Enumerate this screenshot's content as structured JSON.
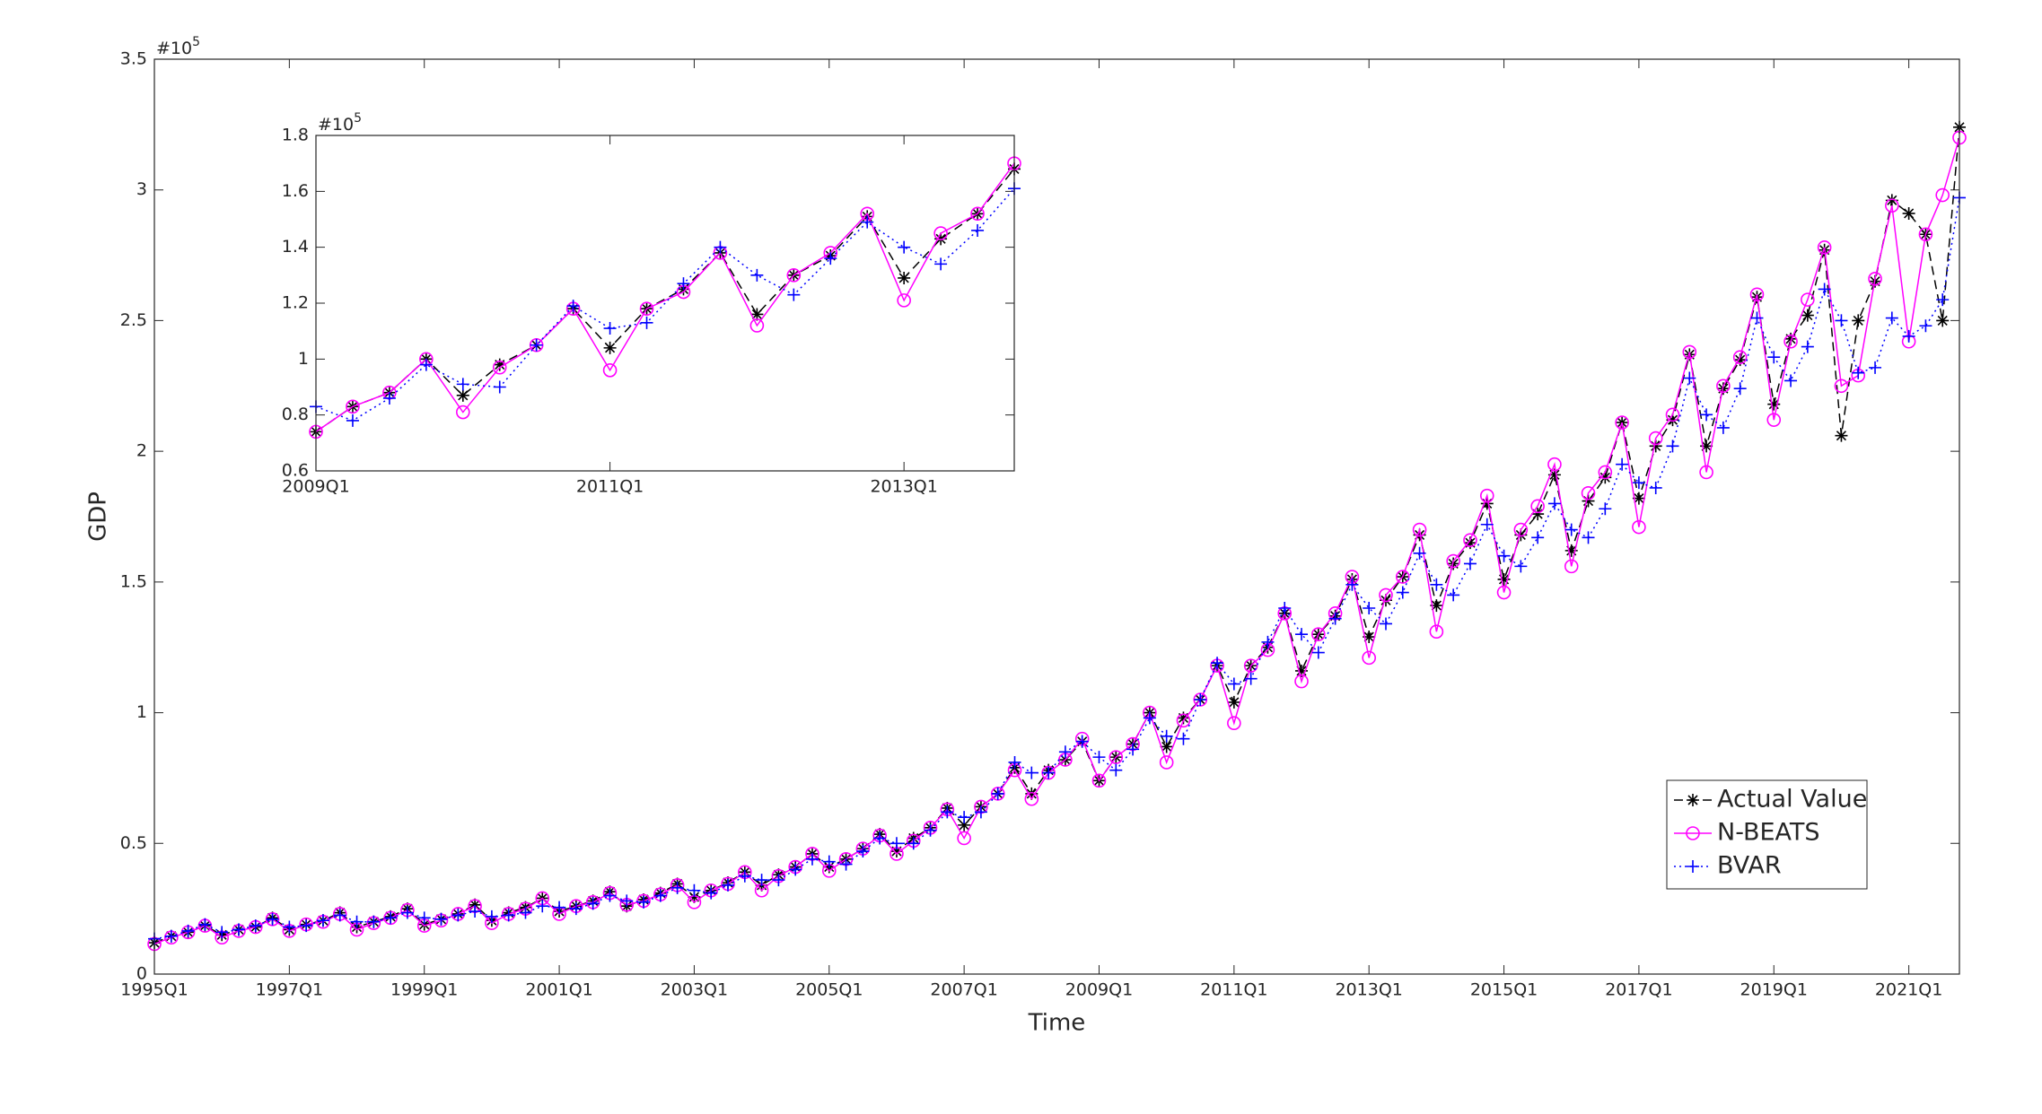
{
  "chart_data": [
    {
      "type": "line",
      "xlabel": "Time",
      "ylabel": "GDP",
      "y_multiplier": "#10",
      "y_multiplier_exp": "5",
      "categories": [
        "1995Q1",
        null,
        null,
        null,
        null,
        null,
        null,
        null,
        "1997Q1",
        null,
        null,
        null,
        null,
        null,
        null,
        null,
        "1999Q1",
        null,
        null,
        null,
        null,
        null,
        null,
        null,
        "2001Q1",
        null,
        null,
        null,
        null,
        null,
        null,
        null,
        "2003Q1",
        null,
        null,
        null,
        null,
        null,
        null,
        null,
        "2005Q1",
        null,
        null,
        null,
        null,
        null,
        null,
        null,
        "2007Q1",
        null,
        null,
        null,
        null,
        null,
        null,
        null,
        "2009Q1",
        null,
        null,
        null,
        null,
        null,
        null,
        null,
        "2011Q1",
        null,
        null,
        null,
        null,
        null,
        null,
        null,
        "2013Q1",
        null,
        null,
        null,
        null,
        null,
        null,
        null,
        "2015Q1",
        null,
        null,
        null,
        null,
        null,
        null,
        null,
        "2017Q1",
        null,
        null,
        null,
        null,
        null,
        null,
        null,
        "2019Q1",
        null,
        null,
        null,
        null,
        null,
        null,
        null,
        "2021Q1",
        null,
        null,
        null
      ],
      "ylim": [
        0,
        3.5
      ],
      "yticks": [
        0,
        0.5,
        1,
        1.5,
        2,
        2.5,
        3,
        3.5
      ],
      "legend": "lower right",
      "series": [
        {
          "name": "Actual Value",
          "color": "#000000",
          "marker": "*",
          "linestyle": "--",
          "values": [
            0.12,
            0.145,
            0.16,
            0.185,
            0.15,
            0.17,
            0.18,
            0.215,
            0.17,
            0.19,
            0.205,
            0.235,
            0.18,
            0.2,
            0.22,
            0.25,
            0.19,
            0.21,
            0.23,
            0.265,
            0.205,
            0.235,
            0.255,
            0.29,
            0.24,
            0.26,
            0.28,
            0.315,
            0.26,
            0.285,
            0.31,
            0.345,
            0.295,
            0.32,
            0.35,
            0.39,
            0.34,
            0.38,
            0.41,
            0.46,
            0.41,
            0.44,
            0.48,
            0.535,
            0.47,
            0.52,
            0.56,
            0.635,
            0.57,
            0.64,
            0.69,
            0.79,
            0.69,
            0.78,
            0.82,
            0.89,
            0.74,
            0.83,
            0.88,
            1.0,
            0.87,
            0.98,
            1.05,
            1.18,
            1.04,
            1.18,
            1.25,
            1.38,
            1.16,
            1.3,
            1.37,
            1.51,
            1.29,
            1.43,
            1.52,
            1.68,
            1.41,
            1.57,
            1.65,
            1.8,
            1.51,
            1.68,
            1.76,
            1.91,
            1.62,
            1.81,
            1.9,
            2.11,
            1.82,
            2.02,
            2.12,
            2.37,
            2.02,
            2.24,
            2.35,
            2.59,
            2.18,
            2.43,
            2.52,
            2.77,
            2.06,
            2.5,
            2.65,
            2.96,
            2.91,
            2.83,
            2.5,
            3.24
          ]
        },
        {
          "name": "N-BEATS",
          "color": "#ff00ff",
          "marker": "o",
          "linestyle": "-",
          "values": [
            0.115,
            0.14,
            0.16,
            0.185,
            0.14,
            0.165,
            0.18,
            0.21,
            0.165,
            0.19,
            0.2,
            0.23,
            0.17,
            0.195,
            0.215,
            0.245,
            0.185,
            0.205,
            0.23,
            0.26,
            0.195,
            0.23,
            0.25,
            0.29,
            0.23,
            0.26,
            0.275,
            0.31,
            0.265,
            0.28,
            0.305,
            0.34,
            0.275,
            0.32,
            0.345,
            0.39,
            0.32,
            0.375,
            0.41,
            0.46,
            0.395,
            0.44,
            0.48,
            0.53,
            0.46,
            0.51,
            0.56,
            0.63,
            0.52,
            0.64,
            0.69,
            0.78,
            0.67,
            0.77,
            0.82,
            0.9,
            0.74,
            0.83,
            0.88,
            1.0,
            0.81,
            0.97,
            1.05,
            1.18,
            0.96,
            1.18,
            1.24,
            1.38,
            1.12,
            1.3,
            1.38,
            1.52,
            1.21,
            1.45,
            1.52,
            1.7,
            1.31,
            1.58,
            1.66,
            1.83,
            1.46,
            1.7,
            1.79,
            1.95,
            1.56,
            1.84,
            1.92,
            2.11,
            1.71,
            2.05,
            2.14,
            2.38,
            1.92,
            2.25,
            2.36,
            2.6,
            2.12,
            2.42,
            2.58,
            2.78,
            2.25,
            2.29,
            2.66,
            2.94,
            2.42,
            2.83,
            2.98,
            3.2
          ]
        },
        {
          "name": "BVAR",
          "color": "#0000ff",
          "marker": "+",
          "linestyle": ":",
          "values": [
            0.135,
            0.145,
            0.165,
            0.19,
            0.16,
            0.17,
            0.185,
            0.21,
            0.18,
            0.185,
            0.205,
            0.225,
            0.2,
            0.2,
            0.215,
            0.235,
            0.215,
            0.21,
            0.225,
            0.24,
            0.22,
            0.225,
            0.235,
            0.26,
            0.255,
            0.25,
            0.27,
            0.3,
            0.28,
            0.275,
            0.3,
            0.33,
            0.32,
            0.31,
            0.34,
            0.375,
            0.36,
            0.36,
            0.4,
            0.44,
            0.43,
            0.42,
            0.47,
            0.52,
            0.5,
            0.5,
            0.55,
            0.62,
            0.6,
            0.62,
            0.69,
            0.81,
            0.77,
            0.77,
            0.85,
            0.89,
            0.83,
            0.78,
            0.86,
            0.98,
            0.91,
            0.9,
            1.05,
            1.19,
            1.11,
            1.13,
            1.27,
            1.4,
            1.3,
            1.23,
            1.36,
            1.49,
            1.4,
            1.34,
            1.46,
            1.61,
            1.49,
            1.45,
            1.57,
            1.72,
            1.6,
            1.56,
            1.67,
            1.8,
            1.7,
            1.67,
            1.78,
            1.95,
            1.88,
            1.86,
            2.02,
            2.28,
            2.14,
            2.09,
            2.24,
            2.51,
            2.36,
            2.27,
            2.4,
            2.62,
            2.5,
            2.3,
            2.32,
            2.51,
            2.44,
            2.48,
            2.58,
            2.97
          ]
        }
      ]
    },
    {
      "type": "line",
      "y_multiplier": "#10",
      "y_multiplier_exp": "5",
      "categories": [
        "2009Q1",
        null,
        null,
        null,
        null,
        null,
        null,
        null,
        "2011Q1",
        null,
        null,
        null,
        null,
        null,
        null,
        null,
        "2013Q1",
        null,
        null,
        null
      ],
      "ylim": [
        0.6,
        1.8
      ],
      "yticks": [
        0.6,
        0.8,
        1,
        1.2,
        1.4,
        1.6,
        1.8
      ],
      "series": [
        {
          "name": "Actual Value",
          "color": "#000000",
          "marker": "*",
          "linestyle": "--",
          "values": [
            0.74,
            0.83,
            0.88,
            1.0,
            0.87,
            0.98,
            1.05,
            1.18,
            1.04,
            1.18,
            1.25,
            1.38,
            1.16,
            1.3,
            1.37,
            1.51,
            1.29,
            1.43,
            1.52,
            1.68
          ]
        },
        {
          "name": "N-BEATS",
          "color": "#ff00ff",
          "marker": "o",
          "linestyle": "-",
          "values": [
            0.74,
            0.83,
            0.88,
            1.0,
            0.81,
            0.97,
            1.05,
            1.18,
            0.96,
            1.18,
            1.24,
            1.38,
            1.12,
            1.3,
            1.38,
            1.52,
            1.21,
            1.45,
            1.52,
            1.7
          ]
        },
        {
          "name": "BVAR",
          "color": "#0000ff",
          "marker": "+",
          "linestyle": ":",
          "values": [
            0.83,
            0.78,
            0.86,
            0.98,
            0.91,
            0.9,
            1.05,
            1.19,
            1.11,
            1.13,
            1.27,
            1.4,
            1.3,
            1.23,
            1.36,
            1.49,
            1.4,
            1.34,
            1.46,
            1.61
          ]
        }
      ]
    }
  ]
}
